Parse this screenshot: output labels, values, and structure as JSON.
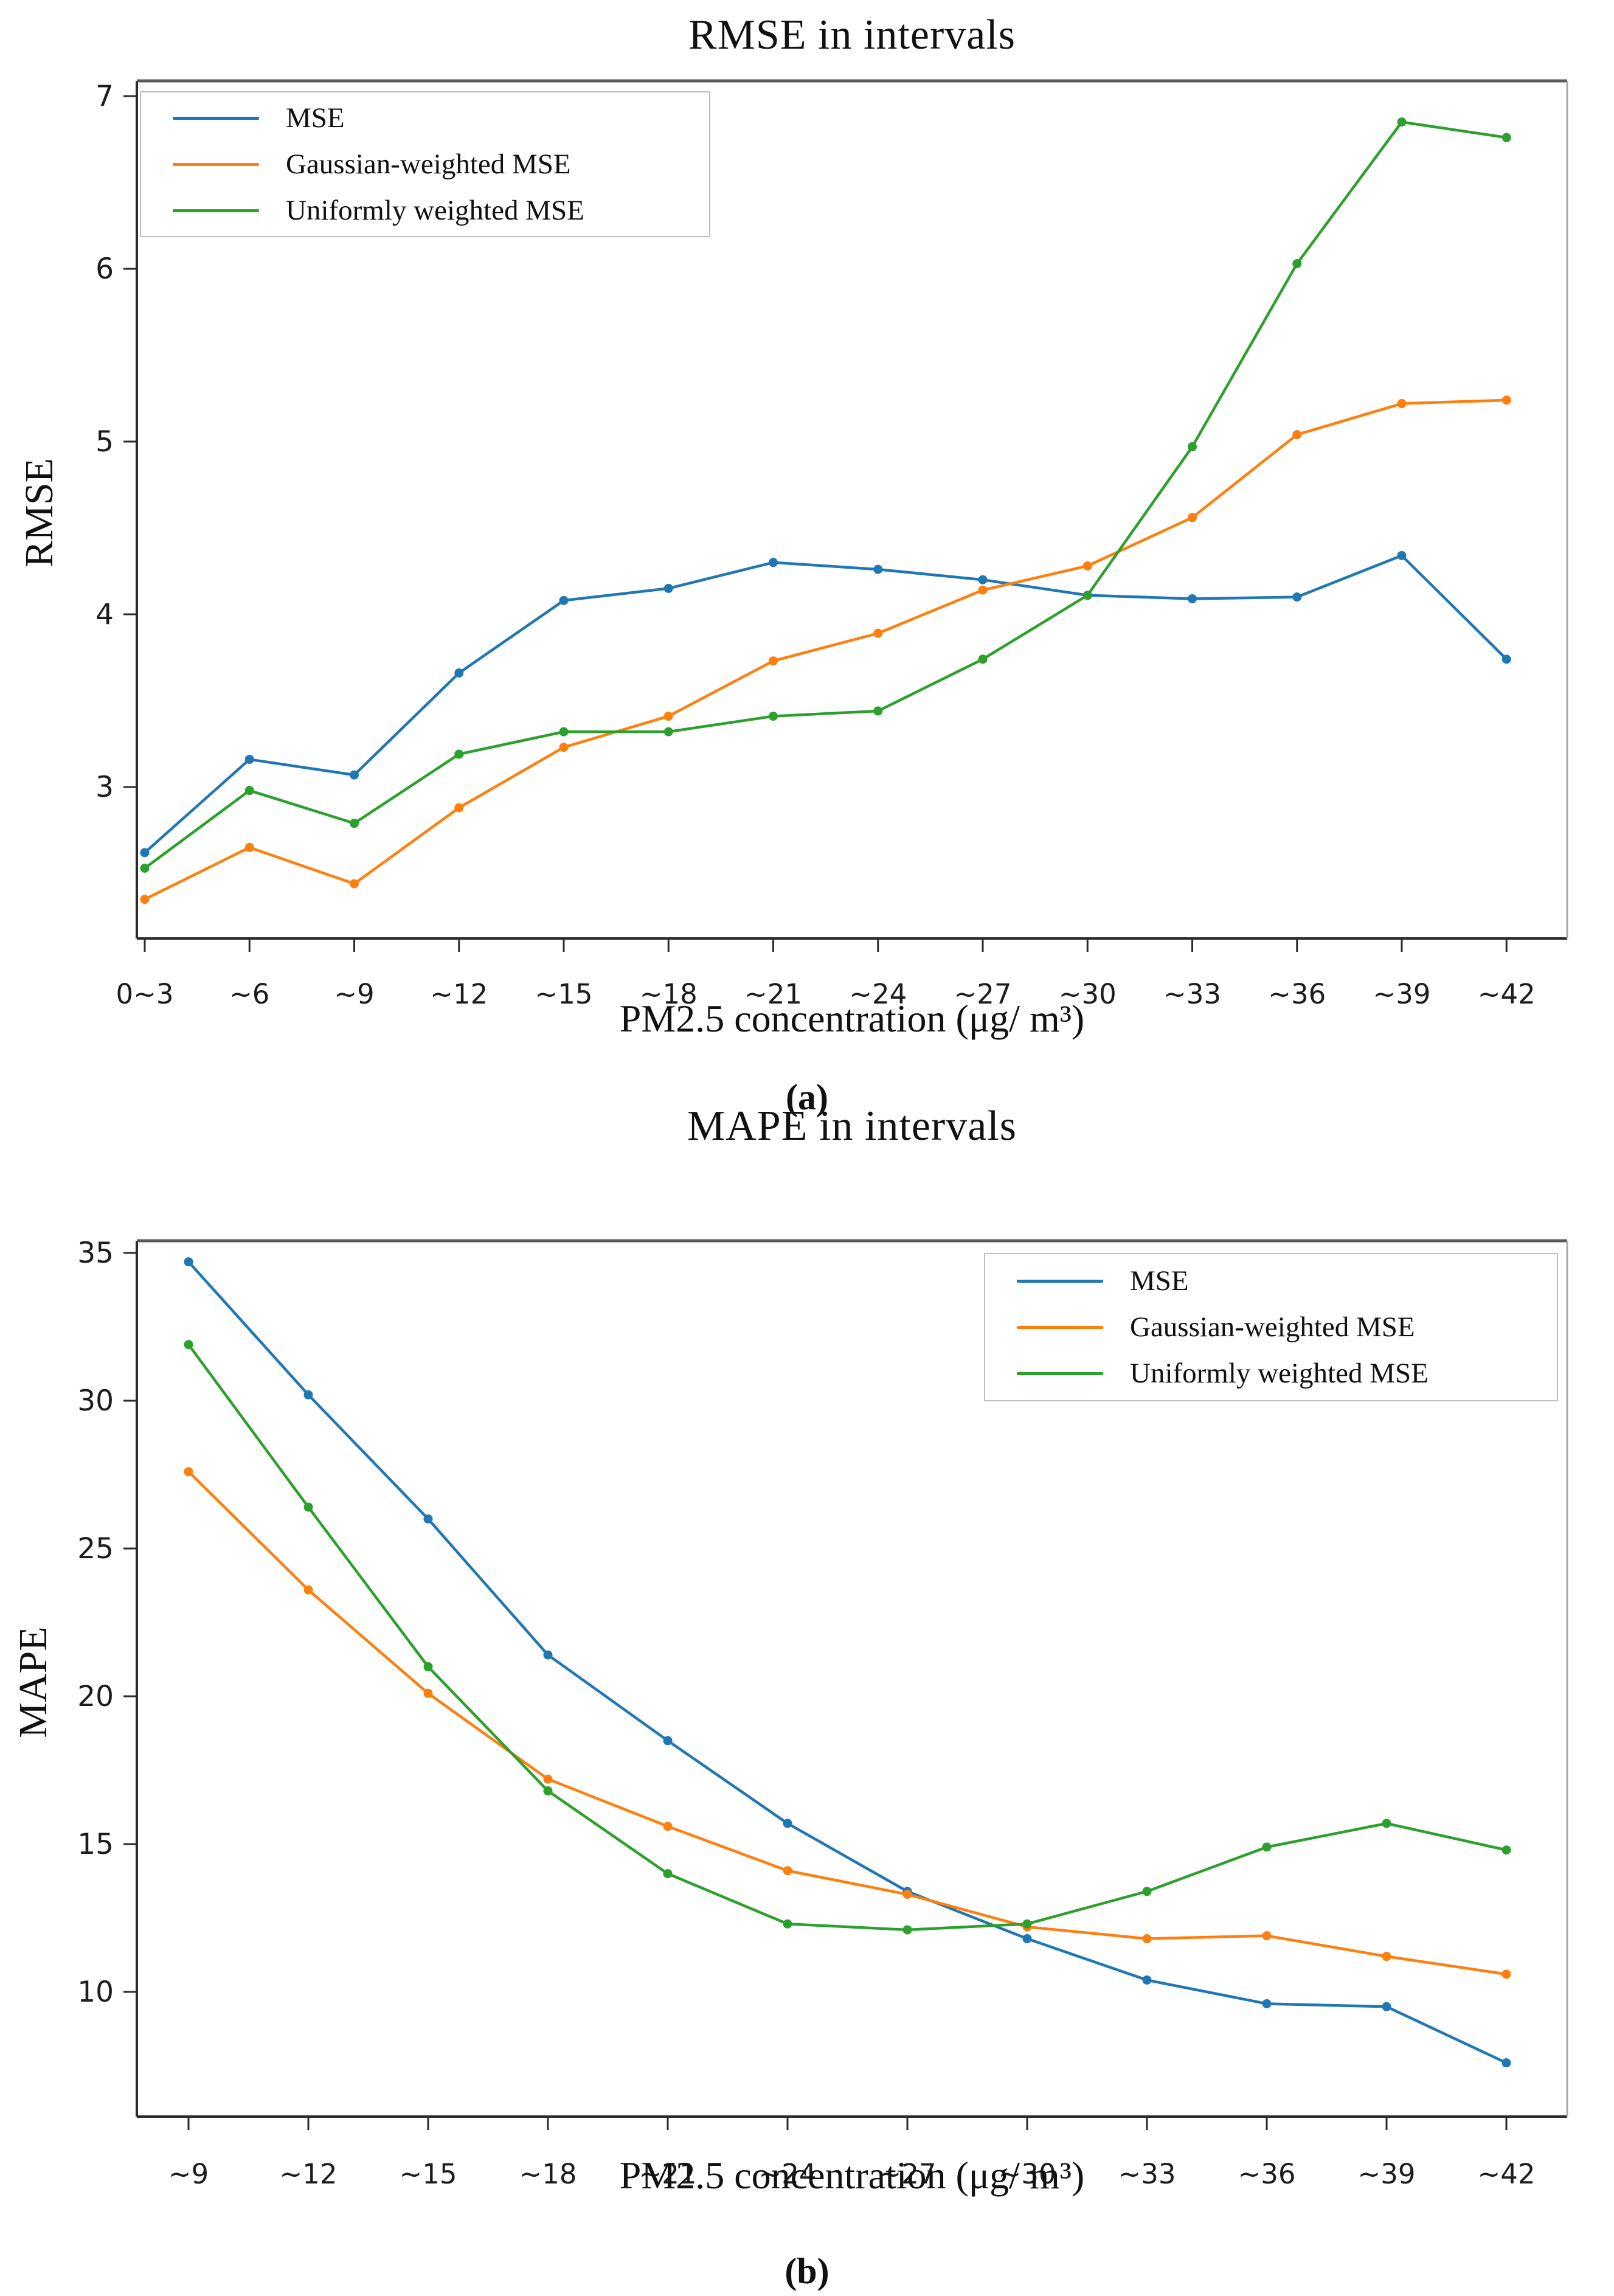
{
  "page": {
    "background": "#ffffff"
  },
  "colors": {
    "mse": "#1f77b4",
    "gaussian": "#ff7f0e",
    "uniform": "#2ca02c"
  },
  "chart_data": [
    {
      "type": "line",
      "title": "RMSE in intervals",
      "xlabel": "PM2.5 concentration (μg/ m³)",
      "ylabel": "RMSE",
      "caption": "(a)",
      "legend_position": "top-left",
      "grid": false,
      "categories": [
        "0~3",
        "~6",
        "~9",
        "~12",
        "~15",
        "~18",
        "~21",
        "~24",
        "~27",
        "~30",
        "~33",
        "~36",
        "~39",
        "~42"
      ],
      "yticks": [
        3,
        4,
        5,
        6,
        7
      ],
      "ylim": [
        2.12,
        7.09
      ],
      "series": [
        {
          "name": "MSE",
          "color_key": "mse",
          "values": [
            2.62,
            3.16,
            3.07,
            3.66,
            4.08,
            4.15,
            4.3,
            4.26,
            4.2,
            4.11,
            4.09,
            4.1,
            4.34,
            3.74
          ]
        },
        {
          "name": "Gaussian-weighted MSE",
          "color_key": "gaussian",
          "values": [
            2.35,
            2.65,
            2.44,
            2.88,
            3.23,
            3.41,
            3.73,
            3.89,
            4.14,
            4.28,
            4.56,
            5.04,
            5.22,
            5.24
          ]
        },
        {
          "name": "Uniformly weighted MSE",
          "color_key": "uniform",
          "values": [
            2.53,
            2.98,
            2.79,
            3.19,
            3.32,
            3.32,
            3.41,
            3.44,
            3.74,
            4.11,
            4.97,
            6.03,
            6.85,
            6.76
          ]
        }
      ]
    },
    {
      "type": "line",
      "title": "MAPE in intervals",
      "xlabel": "PM2.5 concentration (μg/ m³)",
      "ylabel": "MAPE",
      "caption": "(b)",
      "legend_position": "top-right",
      "grid": false,
      "categories": [
        "~9",
        "~12",
        "~15",
        "~18",
        "~21",
        "~24",
        "~27",
        "~30",
        "~33",
        "~36",
        "~39",
        "~42"
      ],
      "yticks": [
        10,
        15,
        20,
        25,
        30,
        35
      ],
      "ylim": [
        5.8,
        35.4
      ],
      "series": [
        {
          "name": "MSE",
          "color_key": "mse",
          "values": [
            34.7,
            30.2,
            26.0,
            21.4,
            18.5,
            15.7,
            13.4,
            11.8,
            10.4,
            9.6,
            9.5,
            7.6
          ]
        },
        {
          "name": "Gaussian-weighted MSE",
          "color_key": "gaussian",
          "values": [
            27.6,
            23.6,
            20.1,
            17.2,
            15.6,
            14.1,
            13.3,
            12.2,
            11.8,
            11.9,
            11.2,
            10.6
          ]
        },
        {
          "name": "Uniformly weighted MSE",
          "color_key": "uniform",
          "values": [
            31.9,
            26.4,
            21.0,
            16.8,
            14.0,
            12.3,
            12.1,
            12.3,
            13.4,
            14.9,
            15.7,
            14.8
          ]
        }
      ]
    }
  ]
}
